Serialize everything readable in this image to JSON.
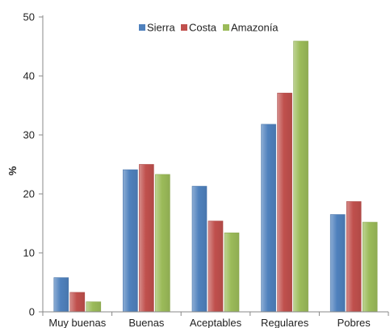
{
  "chart_data": {
    "type": "bar",
    "ylabel": "%",
    "xlabel": "",
    "ylim": [
      0,
      50
    ],
    "yticks": [
      0,
      10,
      20,
      30,
      40,
      50
    ],
    "grid": false,
    "legend_position": "top-center",
    "categories": [
      "Muy buenas",
      "Buenas",
      "Aceptables",
      "Regulares",
      "Pobres"
    ],
    "series": [
      {
        "name": "Sierra",
        "color": "#4f81bd",
        "values": [
          5.8,
          24.1,
          21.3,
          31.8,
          16.5
        ]
      },
      {
        "name": "Costa",
        "color": "#c0504d",
        "values": [
          3.3,
          25.0,
          15.4,
          37.1,
          18.7
        ]
      },
      {
        "name": "Amazonía",
        "color": "#9bbb59",
        "values": [
          1.7,
          23.3,
          13.4,
          45.9,
          15.2
        ]
      }
    ]
  }
}
